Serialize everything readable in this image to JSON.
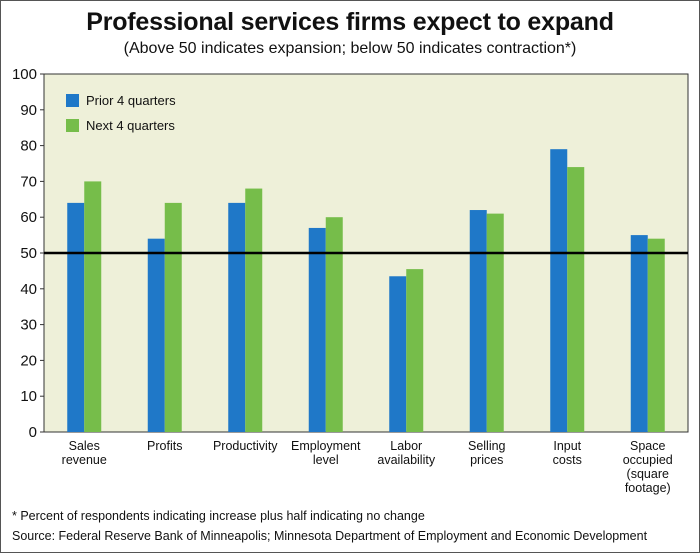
{
  "colors": {
    "plot_bg": "#eef0d9",
    "series1": "#1f78c8",
    "series2": "#76bd4a",
    "reference_line": "#000000"
  },
  "chart_data": {
    "type": "bar",
    "title": "Professional services firms expect to expand",
    "subtitle": "(Above 50 indicates expansion; below 50 indicates contraction*)",
    "categories": [
      [
        "Sales",
        "revenue"
      ],
      [
        "Profits"
      ],
      [
        "Productivity"
      ],
      [
        "Employment",
        "level"
      ],
      [
        "Labor",
        "availability"
      ],
      [
        "Selling",
        "prices"
      ],
      [
        "Input",
        "costs"
      ],
      [
        "Space",
        "occupied",
        "(square",
        "footage)"
      ]
    ],
    "series": [
      {
        "name": "Prior 4 quarters",
        "values": [
          64,
          54,
          64,
          57,
          43.5,
          62,
          79,
          55
        ]
      },
      {
        "name": "Next 4 quarters",
        "values": [
          70,
          64,
          68,
          60,
          45.5,
          61,
          74,
          54
        ]
      }
    ],
    "ylim": [
      0,
      100
    ],
    "yticks": [
      0,
      10,
      20,
      30,
      40,
      50,
      60,
      70,
      80,
      90,
      100
    ],
    "reference_line": 50,
    "legend_position": "top-left",
    "grid": false
  },
  "footnote": "* Percent of respondents indicating increase plus half indicating no change",
  "source": "Source: Federal Reserve Bank of Minneapolis; Minnesota Department of Employment and Economic Development"
}
